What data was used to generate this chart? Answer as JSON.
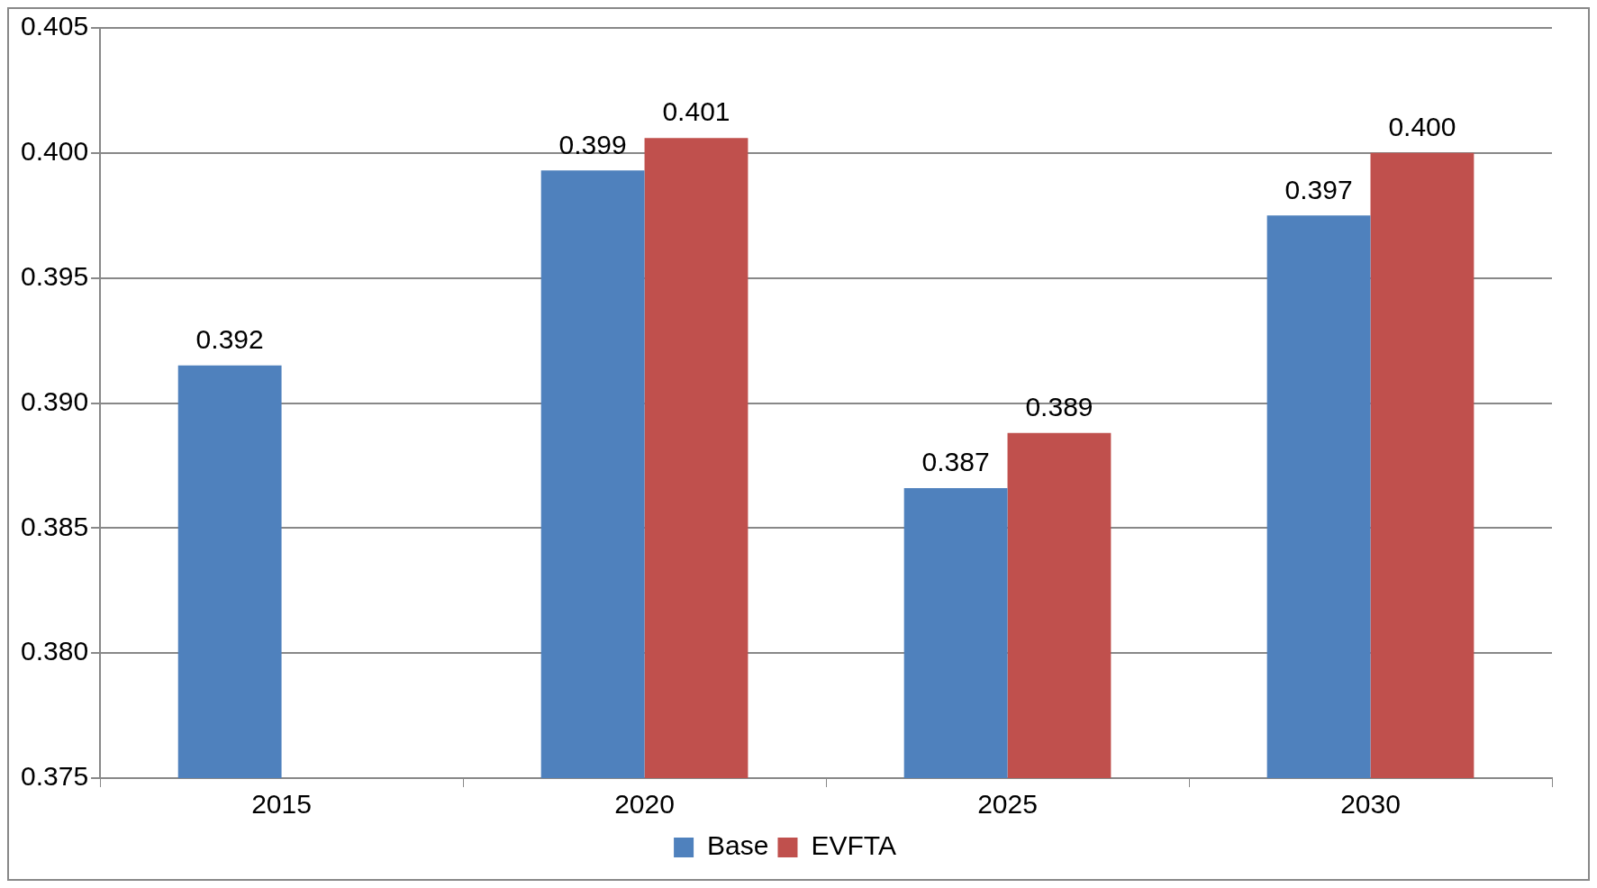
{
  "chart_data": {
    "type": "bar",
    "categories": [
      "2015",
      "2020",
      "2025",
      "2030"
    ],
    "series": [
      {
        "name": "Base",
        "color": "#4f81bd",
        "values": [
          0.3915,
          0.3993,
          0.3866,
          0.3975
        ],
        "value_labels": [
          "0.392",
          "0.399",
          "0.387",
          "0.397"
        ]
      },
      {
        "name": "EVFTA",
        "color": "#c0504d",
        "values": [
          null,
          0.4006,
          0.3888,
          0.4
        ],
        "value_labels": [
          null,
          "0.401",
          "0.389",
          "0.400"
        ]
      }
    ],
    "ylim": [
      0.375,
      0.405
    ],
    "yticks": [
      {
        "value": 0.375,
        "label": "0.375"
      },
      {
        "value": 0.38,
        "label": "0.380"
      },
      {
        "value": 0.385,
        "label": "0.385"
      },
      {
        "value": 0.39,
        "label": "0.390"
      },
      {
        "value": 0.395,
        "label": "0.395"
      },
      {
        "value": 0.4,
        "label": "0.400"
      },
      {
        "value": 0.405,
        "label": "0.405"
      }
    ],
    "grid": "y",
    "legend": "bottom"
  }
}
